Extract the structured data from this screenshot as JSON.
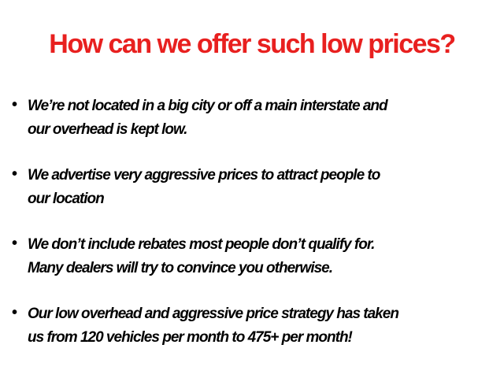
{
  "title": "How can we offer such low prices?",
  "colors": {
    "title": "#e8201f",
    "text": "#000000"
  },
  "bullets": [
    {
      "lines": [
        "We’re not located in a big city or off a main interstate and",
        "our overhead is kept low."
      ]
    },
    {
      "lines": [
        "We advertise very aggressive prices to attract people to",
        "our location"
      ]
    },
    {
      "lines": [
        "We don’t include rebates most people don’t qualify for.",
        "Many dealers will try to convince you otherwise."
      ]
    },
    {
      "lines": [
        "Our low overhead and aggressive price strategy has taken",
        "us from 120 vehicles per month to 475+ per month!"
      ]
    }
  ]
}
